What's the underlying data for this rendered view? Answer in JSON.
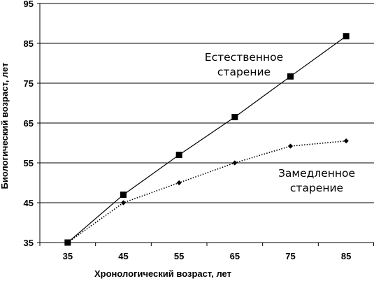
{
  "chart_data": {
    "type": "line",
    "title": "",
    "xlabel": "Хронологический возраст, лет",
    "ylabel": "Биологический возраст, лет",
    "x_ticks": [
      35,
      45,
      55,
      65,
      75,
      85
    ],
    "y_ticks": [
      35,
      45,
      55,
      65,
      75,
      85,
      95
    ],
    "xlim": [
      30,
      90
    ],
    "ylim": [
      35,
      95
    ],
    "grid": "horizontal",
    "legend": "none",
    "series": [
      {
        "line_style": "solid",
        "marker": "square",
        "color": "#000000",
        "x": [
          35,
          45,
          55,
          65,
          75,
          85
        ],
        "values": [
          35,
          47,
          57,
          66.5,
          76.7,
          86.8
        ]
      },
      {
        "line_style": "dotted",
        "marker": "diamond",
        "color": "#000000",
        "x": [
          35,
          45,
          55,
          65,
          75,
          85
        ],
        "values": [
          35,
          45,
          50,
          55,
          59.2,
          60.5
        ]
      }
    ],
    "annotations": [
      {
        "lines": [
          "Естественное",
          "старение"
        ]
      },
      {
        "lines": [
          "Замедленное",
          "старение"
        ]
      }
    ]
  }
}
